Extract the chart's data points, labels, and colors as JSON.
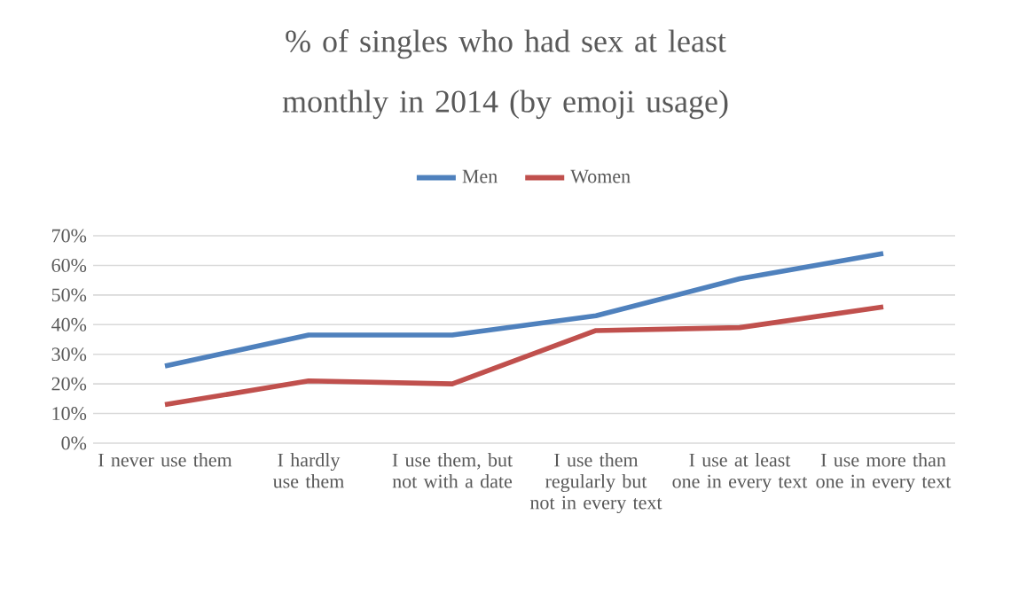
{
  "chart_data": {
    "type": "line",
    "title": "% of singles who had sex at least monthly in 2014 (by emoji usage)",
    "categories": [
      "I never use them",
      "I hardly use them",
      "I use them, but not with a date",
      "I use them regularly but not in every text",
      "I use at least one in every text",
      "I use more than one in every text"
    ],
    "series": [
      {
        "name": "Men",
        "color": "#4f81bd",
        "values": [
          26,
          36.5,
          36.5,
          43,
          55.5,
          64
        ]
      },
      {
        "name": "Women",
        "color": "#c0504d",
        "values": [
          13,
          21,
          20,
          38,
          39,
          46
        ]
      }
    ],
    "ylim": [
      0,
      70
    ],
    "yticks": [
      {
        "value": 0,
        "label": "0%"
      },
      {
        "value": 10,
        "label": "10%"
      },
      {
        "value": 20,
        "label": "20%"
      },
      {
        "value": 30,
        "label": "30%"
      },
      {
        "value": 40,
        "label": "40%"
      },
      {
        "value": 50,
        "label": "50%"
      },
      {
        "value": 60,
        "label": "60%"
      },
      {
        "value": 70,
        "label": "70%"
      }
    ],
    "grid": "y",
    "legend": "top",
    "marker": "none",
    "line_style": "solid"
  }
}
